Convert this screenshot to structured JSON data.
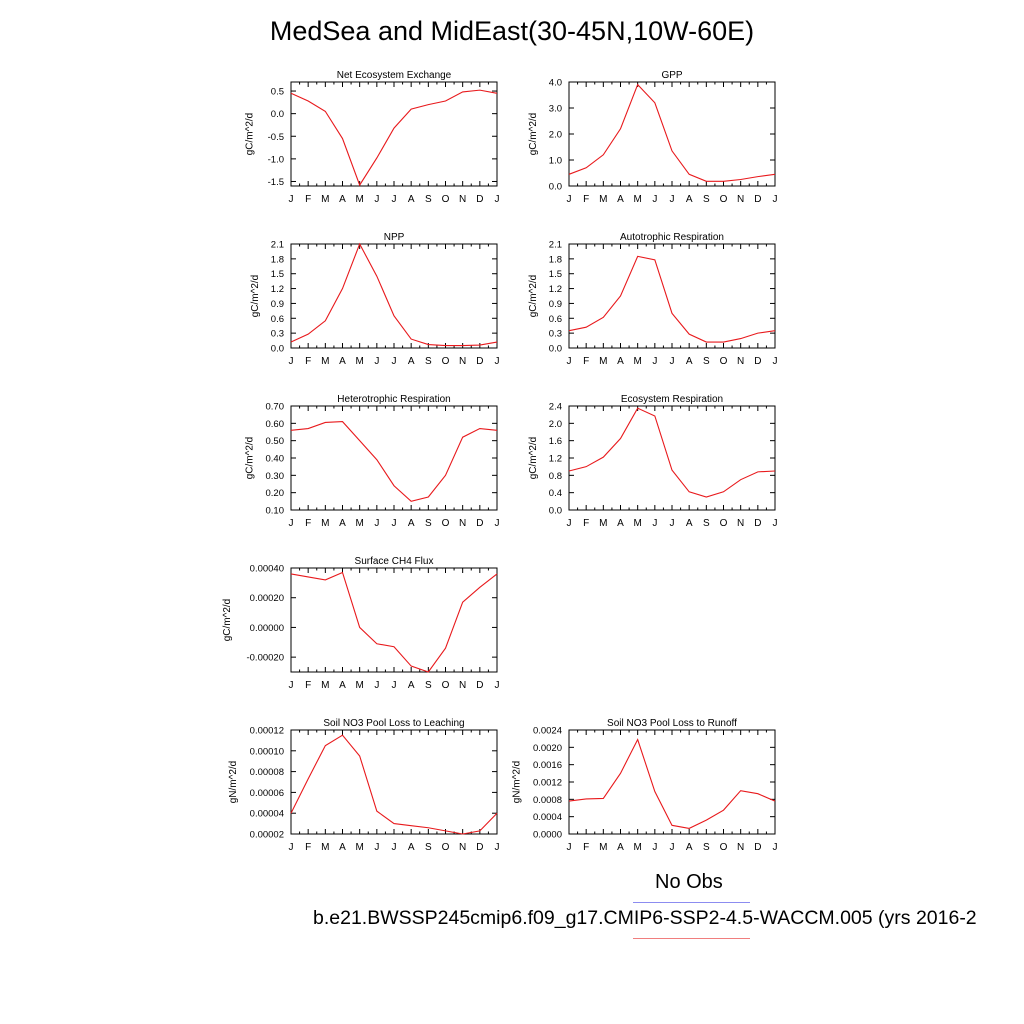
{
  "title": "MedSea and MidEast(30-45N,10W-60E)",
  "colors": {
    "model_line": "#e8191c",
    "obs_line": "#8c8cf0",
    "case_line": "#f07e7e",
    "axis": "#000000"
  },
  "months": [
    "J",
    "F",
    "M",
    "A",
    "M",
    "J",
    "J",
    "A",
    "S",
    "O",
    "N",
    "D",
    "J"
  ],
  "legend": {
    "obs_label": "No Obs",
    "case_label": "b.e21.BWSSP245cmip6.f09_g17.CMIP6-SSP2-4.5-WACCM.005 (yrs 2016-2"
  },
  "chart_data": [
    {
      "type": "line",
      "title": "Net Ecosystem Exchange",
      "ylabel": "gC/m^2/d",
      "x": [
        "J",
        "F",
        "M",
        "A",
        "M",
        "J",
        "J",
        "A",
        "S",
        "O",
        "N",
        "D",
        "J"
      ],
      "series": [
        {
          "values": [
            0.45,
            0.28,
            0.05,
            -0.55,
            -1.58,
            -0.98,
            -0.32,
            0.1,
            0.2,
            0.28,
            0.48,
            0.52,
            0.45
          ]
        }
      ],
      "ylim": [
        -1.6,
        0.7
      ],
      "yticks": [
        -1.5,
        -1.0,
        -0.5,
        0.0,
        0.5
      ],
      "ytick_labels": [
        "-1.5",
        "-1.0",
        "-0.5",
        "0.0",
        "0.5"
      ]
    },
    {
      "type": "line",
      "title": "GPP",
      "ylabel": "gC/m^2/d",
      "x": [
        "J",
        "F",
        "M",
        "A",
        "M",
        "J",
        "J",
        "A",
        "S",
        "O",
        "N",
        "D",
        "J"
      ],
      "series": [
        {
          "values": [
            0.45,
            0.7,
            1.2,
            2.2,
            3.9,
            3.2,
            1.35,
            0.45,
            0.18,
            0.18,
            0.25,
            0.36,
            0.45
          ]
        }
      ],
      "ylim": [
        0.0,
        4.0
      ],
      "yticks": [
        0.0,
        1.0,
        2.0,
        3.0,
        4.0
      ],
      "ytick_labels": [
        "0.0",
        "1.0",
        "2.0",
        "3.0",
        "4.0"
      ]
    },
    {
      "type": "line",
      "title": "NPP",
      "ylabel": "gC/m^2/d",
      "x": [
        "J",
        "F",
        "M",
        "A",
        "M",
        "J",
        "J",
        "A",
        "S",
        "O",
        "N",
        "D",
        "J"
      ],
      "series": [
        {
          "values": [
            0.12,
            0.28,
            0.55,
            1.2,
            2.1,
            1.45,
            0.65,
            0.18,
            0.07,
            0.05,
            0.05,
            0.06,
            0.12
          ]
        }
      ],
      "ylim": [
        0.0,
        2.1
      ],
      "yticks": [
        0.0,
        0.3,
        0.6,
        0.9,
        1.2,
        1.5,
        1.8,
        2.1
      ],
      "ytick_labels": [
        "0.0",
        "0.3",
        "0.6",
        "0.9",
        "1.2",
        "1.5",
        "1.8",
        "2.1"
      ]
    },
    {
      "type": "line",
      "title": "Autotrophic Respiration",
      "ylabel": "gC/m^2/d",
      "x": [
        "J",
        "F",
        "M",
        "A",
        "M",
        "J",
        "J",
        "A",
        "S",
        "O",
        "N",
        "D",
        "J"
      ],
      "series": [
        {
          "values": [
            0.35,
            0.42,
            0.62,
            1.05,
            1.85,
            1.78,
            0.7,
            0.28,
            0.12,
            0.12,
            0.19,
            0.3,
            0.35
          ]
        }
      ],
      "ylim": [
        0.0,
        2.1
      ],
      "yticks": [
        0.0,
        0.3,
        0.6,
        0.9,
        1.2,
        1.5,
        1.8,
        2.1
      ],
      "ytick_labels": [
        "0.0",
        "0.3",
        "0.6",
        "0.9",
        "1.2",
        "1.5",
        "1.8",
        "2.1"
      ]
    },
    {
      "type": "line",
      "title": "Heterotrophic Respiration",
      "ylabel": "gC/m^2/d",
      "x": [
        "J",
        "F",
        "M",
        "A",
        "M",
        "J",
        "J",
        "A",
        "S",
        "O",
        "N",
        "D",
        "J"
      ],
      "series": [
        {
          "values": [
            0.56,
            0.57,
            0.605,
            0.61,
            0.5,
            0.39,
            0.24,
            0.15,
            0.175,
            0.3,
            0.52,
            0.57,
            0.56
          ]
        }
      ],
      "ylim": [
        0.1,
        0.7
      ],
      "yticks": [
        0.1,
        0.2,
        0.3,
        0.4,
        0.5,
        0.6,
        0.7
      ],
      "ytick_labels": [
        "0.10",
        "0.20",
        "0.30",
        "0.40",
        "0.50",
        "0.60",
        "0.70"
      ]
    },
    {
      "type": "line",
      "title": "Ecosystem Respiration",
      "ylabel": "gC/m^2/d",
      "x": [
        "J",
        "F",
        "M",
        "A",
        "M",
        "J",
        "J",
        "A",
        "S",
        "O",
        "N",
        "D",
        "J"
      ],
      "series": [
        {
          "values": [
            0.9,
            1.0,
            1.22,
            1.65,
            2.35,
            2.17,
            0.92,
            0.42,
            0.3,
            0.42,
            0.7,
            0.88,
            0.9
          ]
        }
      ],
      "ylim": [
        0.0,
        2.4
      ],
      "yticks": [
        0.0,
        0.4,
        0.8,
        1.2,
        1.6,
        2.0,
        2.4
      ],
      "ytick_labels": [
        "0.0",
        "0.4",
        "0.8",
        "1.2",
        "1.6",
        "2.0",
        "2.4"
      ]
    },
    {
      "type": "line",
      "title": "Surface CH4 Flux",
      "ylabel": "gC/m^2/d",
      "x": [
        "J",
        "F",
        "M",
        "A",
        "M",
        "J",
        "J",
        "A",
        "S",
        "O",
        "N",
        "D",
        "J"
      ],
      "series": [
        {
          "values": [
            0.00036,
            0.00034,
            0.00032,
            0.00037,
            0.0,
            -0.00011,
            -0.00013,
            -0.00026,
            -0.0003,
            -0.00014,
            0.00017,
            0.00027,
            0.00036
          ]
        }
      ],
      "ylim": [
        -0.0003,
        0.0004
      ],
      "yticks": [
        -0.0002,
        0.0,
        0.0002,
        0.0004
      ],
      "ytick_labels": [
        "-0.00020",
        "0.00000",
        "0.00020",
        "0.00040"
      ]
    },
    {
      "type": "line",
      "title": "Soil NO3 Pool Loss to Leaching",
      "ylabel": "gN/m^2/d",
      "x": [
        "J",
        "F",
        "M",
        "A",
        "M",
        "J",
        "J",
        "A",
        "S",
        "O",
        "N",
        "D",
        "J"
      ],
      "series": [
        {
          "values": [
            4e-05,
            7.3e-05,
            0.000105,
            0.000115,
            9.5e-05,
            4.2e-05,
            3e-05,
            2.8e-05,
            2.6e-05,
            2.3e-05,
            2e-05,
            2.3e-05,
            4e-05
          ]
        }
      ],
      "ylim": [
        2e-05,
        0.00012
      ],
      "yticks": [
        2e-05,
        4e-05,
        6e-05,
        8e-05,
        0.0001,
        0.00012
      ],
      "ytick_labels": [
        "0.00002",
        "0.00004",
        "0.00006",
        "0.00008",
        "0.00010",
        "0.00012"
      ]
    },
    {
      "type": "line",
      "title": "Soil NO3 Pool Loss to Runoff",
      "ylabel": "gN/m^2/d",
      "x": [
        "J",
        "F",
        "M",
        "A",
        "M",
        "J",
        "J",
        "A",
        "S",
        "O",
        "N",
        "D",
        "J"
      ],
      "series": [
        {
          "values": [
            0.00076,
            0.00081,
            0.00082,
            0.0014,
            0.00218,
            0.00098,
            0.0002,
            0.00013,
            0.00032,
            0.00055,
            0.001,
            0.00093,
            0.00076
          ]
        }
      ],
      "ylim": [
        0.0,
        0.0024
      ],
      "yticks": [
        0.0,
        0.0004,
        0.0008,
        0.0012,
        0.0016,
        0.002,
        0.0024
      ],
      "ytick_labels": [
        "0.0000",
        "0.0004",
        "0.0008",
        "0.0012",
        "0.0016",
        "0.0020",
        "0.0024"
      ]
    }
  ]
}
